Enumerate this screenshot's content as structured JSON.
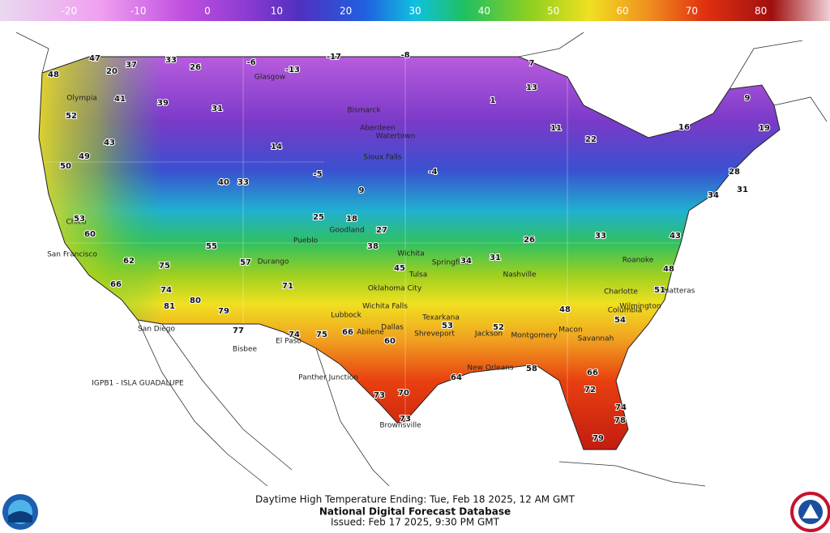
{
  "colorbar": {
    "min": -30,
    "max": 90,
    "ticks": [
      -20,
      -10,
      0,
      10,
      20,
      30,
      40,
      50,
      60,
      70,
      80
    ]
  },
  "map": {
    "temperatures": [
      47,
      48,
      37,
      33,
      20,
      26,
      -6,
      -13,
      -17,
      -8,
      7,
      13,
      1,
      52,
      41,
      39,
      31,
      14,
      -5,
      9,
      -4,
      11,
      22,
      16,
      9,
      19,
      50,
      49,
      43,
      40,
      33,
      25,
      18,
      27,
      31,
      53,
      60,
      62,
      75,
      55,
      57,
      71,
      66,
      74,
      81,
      80,
      79,
      77,
      74,
      75,
      66,
      60,
      53,
      52,
      48,
      54,
      66,
      72,
      74,
      78,
      79,
      73,
      70,
      73,
      64,
      58,
      38,
      45,
      34,
      26,
      33,
      28,
      31,
      34,
      43,
      48,
      51
    ],
    "places": [
      "Olympia",
      "Glasgow",
      "Bismarck",
      "Aberdeen",
      "Watertown",
      "Sioux Falls",
      "Goodland",
      "Pueblo",
      "Durango",
      "Wichita",
      "Tulsa",
      "Oklahoma City",
      "Wichita Falls",
      "Lubbock",
      "Abilene",
      "Dallas",
      "Texarkana",
      "Shreveport",
      "Jackson",
      "Montgomery",
      "Macon",
      "Columbia",
      "Charlotte",
      "Roanoke",
      "Nashville",
      "Springfield",
      "Chico",
      "San Francisco",
      "San Diego",
      "El Paso",
      "Bisbee",
      "Panther Junction",
      "Brownsville",
      "New Orleans",
      "Savannah",
      "Wilmington",
      "Hatteras"
    ],
    "offshore_label": "IGPB1 - ISLA GUADALUPE"
  },
  "footer": {
    "caption": "Daytime High Temperature Ending: Tue, Feb 18 2025, 12 AM GMT",
    "title": "National Digital Forecast Database",
    "issued": "Issued: Feb 17 2025, 9:30 PM GMT"
  }
}
